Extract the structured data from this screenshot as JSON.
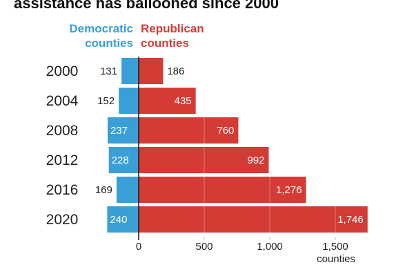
{
  "chart_data": {
    "type": "bar",
    "title": "assistance has ballooned since 2000",
    "categories": [
      "2000",
      "2004",
      "2008",
      "2012",
      "2016",
      "2020"
    ],
    "series": [
      {
        "name": "Democratic counties",
        "color": "#3a9fd6",
        "values": [
          131,
          152,
          237,
          228,
          169,
          240
        ]
      },
      {
        "name": "Republican counties",
        "color": "#d43b35",
        "values": [
          186,
          435,
          760,
          992,
          1276,
          1746
        ]
      }
    ],
    "value_labels": {
      "Democratic counties": [
        "131",
        "152",
        "237",
        "228",
        "169",
        "240"
      ],
      "Republican counties": [
        "186",
        "435",
        "760",
        "992",
        "1,276",
        "1,746"
      ]
    },
    "legend": {
      "democratic": [
        "Democratic",
        "counties"
      ],
      "republican": [
        "Republican",
        "counties"
      ]
    },
    "xticks": [
      0,
      500,
      1000,
      1500
    ],
    "xtick_labels": [
      "0",
      "500",
      "1,000",
      "1,500"
    ],
    "xlabel": "counties",
    "xlim": [
      -250,
      1800
    ],
    "grid": true
  }
}
